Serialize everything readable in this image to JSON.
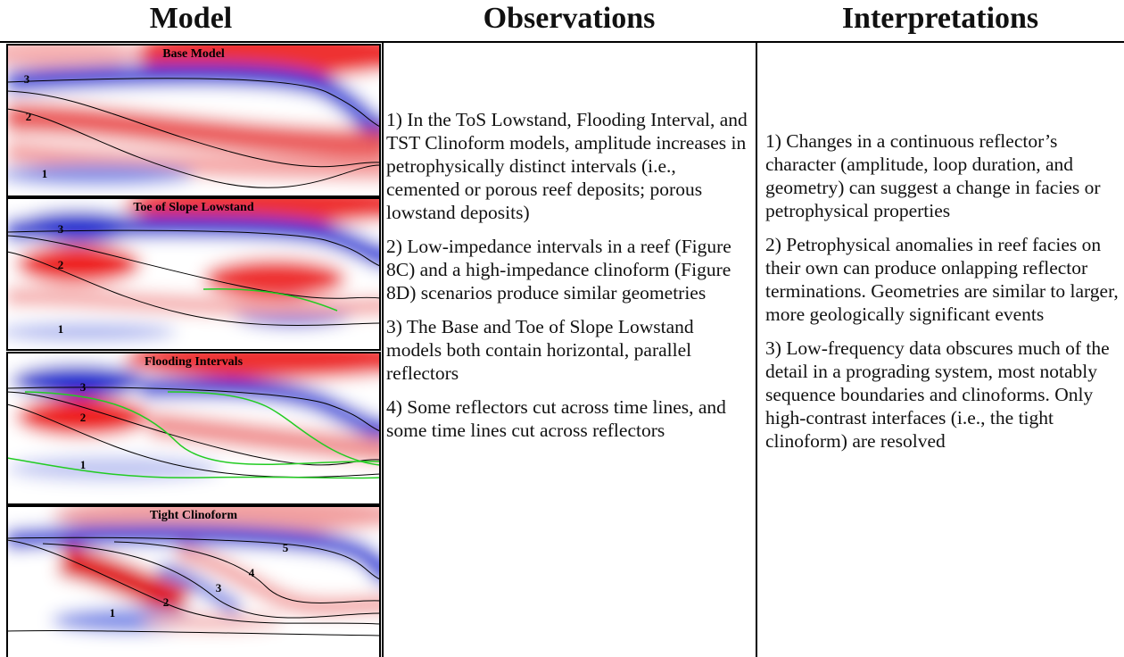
{
  "headers": [
    "Model",
    "Observations",
    "Interpretations"
  ],
  "models": [
    {
      "title": "Base Model",
      "labels": [
        "3",
        "2",
        "1"
      ]
    },
    {
      "title": "Toe of Slope Lowstand",
      "labels": [
        "3",
        "2",
        "1"
      ]
    },
    {
      "title": "Flooding Intervals",
      "labels": [
        "3",
        "2",
        "1"
      ]
    },
    {
      "title": "Tight Clinoform",
      "labels": [
        "5",
        "4",
        "3",
        "2",
        "1"
      ]
    }
  ],
  "observations": [
    "1) In the ToS Lowstand, Flooding Interval, and TST Clinoform models, amplitude increases in petrophysically distinct intervals (i.e., cemented or porous reef deposits; porous lowstand deposits)",
    "2) Low-impedance intervals in a reef (Figure 8C) and a high-impedance clinoform (Figure 8D) scenarios produce similar geometries",
    "3) The Base and Toe of Slope Lowstand models both contain horizontal, parallel reflectors",
    "4) Some reflectors cut across time lines, and some time lines cut across reflectors"
  ],
  "interpretations": [
    "1) Changes in a continuous reflector’s character (amplitude, loop duration, and geometry) can suggest a change in facies or petrophysical properties",
    "2) Petrophysical anomalies in reef facies on their own can produce onlapping reflector terminations. Geometries are similar to larger, more geologically significant events",
    "3) Low-frequency data obscures much of the detail in a prograding system, most notably sequence boundaries and clinoforms. Only high-contrast interfaces (i.e., the tight clinoform) are resolved"
  ]
}
